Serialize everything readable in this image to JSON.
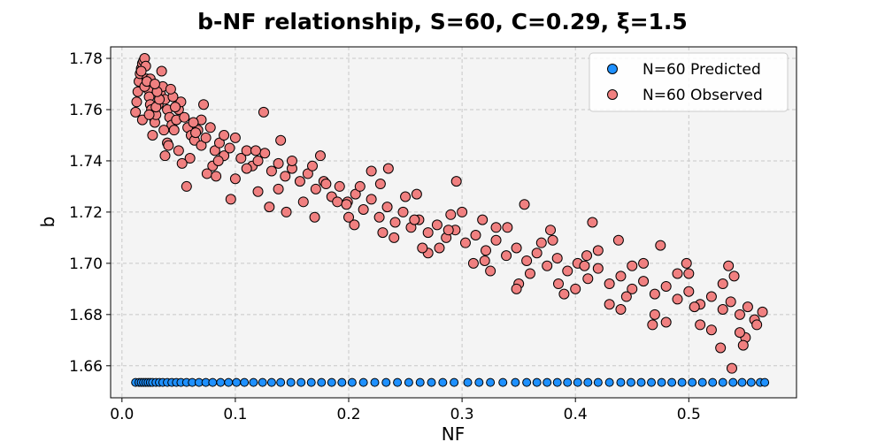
{
  "chart_data": {
    "type": "scatter",
    "title": "b-NF relationship, S=60, C=0.29, ξ=1.5",
    "xlabel": "NF",
    "ylabel": "b",
    "xlim": [
      -0.01,
      0.595
    ],
    "ylim": [
      1.6475,
      1.7845
    ],
    "x_ticks": [
      0.0,
      0.1,
      0.2,
      0.3,
      0.4,
      0.5
    ],
    "x_tick_labels": [
      "0.0",
      "0.1",
      "0.2",
      "0.3",
      "0.4",
      "0.5"
    ],
    "y_ticks": [
      1.66,
      1.68,
      1.7,
      1.72,
      1.74,
      1.76,
      1.78
    ],
    "y_tick_labels": [
      "1.66",
      "1.68",
      "1.70",
      "1.72",
      "1.74",
      "1.76",
      "1.78"
    ],
    "grid": true,
    "legend_position": "top-right",
    "series": [
      {
        "name": "N=60 Predicted",
        "color": "#1e90ff",
        "x": [
          0.012,
          0.015,
          0.017,
          0.019,
          0.021,
          0.023,
          0.025,
          0.027,
          0.03,
          0.033,
          0.036,
          0.04,
          0.044,
          0.048,
          0.052,
          0.057,
          0.062,
          0.068,
          0.074,
          0.08,
          0.087,
          0.094,
          0.101,
          0.108,
          0.116,
          0.124,
          0.132,
          0.14,
          0.149,
          0.158,
          0.167,
          0.176,
          0.185,
          0.194,
          0.203,
          0.213,
          0.223,
          0.233,
          0.243,
          0.253,
          0.263,
          0.273,
          0.283,
          0.293,
          0.305,
          0.315,
          0.325,
          0.336,
          0.347,
          0.357,
          0.366,
          0.375,
          0.384,
          0.393,
          0.402,
          0.411,
          0.42,
          0.43,
          0.44,
          0.449,
          0.458,
          0.467,
          0.476,
          0.485,
          0.494,
          0.503,
          0.512,
          0.521,
          0.53,
          0.539,
          0.547,
          0.555,
          0.563,
          0.567
        ],
        "y": [
          1.6535,
          1.6535,
          1.6535,
          1.6535,
          1.6535,
          1.6535,
          1.6535,
          1.6535,
          1.6535,
          1.6535,
          1.6535,
          1.6535,
          1.6535,
          1.6535,
          1.6535,
          1.6535,
          1.6535,
          1.6535,
          1.6535,
          1.6535,
          1.6535,
          1.6535,
          1.6535,
          1.6535,
          1.6535,
          1.6535,
          1.6535,
          1.6535,
          1.6535,
          1.6535,
          1.6535,
          1.6535,
          1.6535,
          1.6535,
          1.6535,
          1.6535,
          1.6535,
          1.6535,
          1.6535,
          1.6535,
          1.6535,
          1.6535,
          1.6535,
          1.6535,
          1.6535,
          1.6535,
          1.6535,
          1.6535,
          1.6535,
          1.6535,
          1.6535,
          1.6535,
          1.6535,
          1.6535,
          1.6535,
          1.6535,
          1.6535,
          1.6535,
          1.6535,
          1.6535,
          1.6535,
          1.6535,
          1.6535,
          1.6535,
          1.6535,
          1.6535,
          1.6535,
          1.6535,
          1.6535,
          1.6535,
          1.6535,
          1.6535,
          1.6535,
          1.6535
        ]
      },
      {
        "name": "N=60 Observed",
        "color": "#f08080",
        "x": [
          0.012,
          0.013,
          0.014,
          0.015,
          0.016,
          0.017,
          0.018,
          0.019,
          0.02,
          0.021,
          0.022,
          0.023,
          0.024,
          0.025,
          0.026,
          0.027,
          0.028,
          0.029,
          0.03,
          0.032,
          0.034,
          0.036,
          0.038,
          0.04,
          0.042,
          0.044,
          0.046,
          0.048,
          0.05,
          0.052,
          0.055,
          0.058,
          0.061,
          0.064,
          0.067,
          0.07,
          0.074,
          0.078,
          0.082,
          0.086,
          0.09,
          0.095,
          0.1,
          0.105,
          0.11,
          0.115,
          0.12,
          0.126,
          0.132,
          0.138,
          0.144,
          0.15,
          0.157,
          0.164,
          0.171,
          0.178,
          0.185,
          0.192,
          0.199,
          0.206,
          0.213,
          0.22,
          0.227,
          0.234,
          0.241,
          0.248,
          0.255,
          0.262,
          0.27,
          0.278,
          0.286,
          0.294,
          0.303,
          0.312,
          0.321,
          0.33,
          0.339,
          0.348,
          0.357,
          0.366,
          0.375,
          0.384,
          0.393,
          0.402,
          0.411,
          0.42,
          0.43,
          0.44,
          0.45,
          0.46,
          0.47,
          0.48,
          0.49,
          0.5,
          0.51,
          0.52,
          0.53,
          0.537,
          0.545,
          0.552,
          0.558,
          0.565,
          0.02,
          0.025,
          0.03,
          0.035,
          0.04,
          0.045,
          0.05,
          0.06,
          0.07,
          0.08,
          0.1,
          0.12,
          0.14,
          0.16,
          0.18,
          0.2,
          0.22,
          0.24,
          0.26,
          0.28,
          0.3,
          0.32,
          0.34,
          0.36,
          0.38,
          0.4,
          0.42,
          0.44,
          0.46,
          0.48,
          0.5,
          0.52,
          0.54,
          0.55,
          0.018,
          0.022,
          0.027,
          0.033,
          0.038,
          0.043,
          0.053,
          0.065,
          0.075,
          0.09,
          0.11,
          0.13,
          0.15,
          0.17,
          0.19,
          0.21,
          0.23,
          0.25,
          0.27,
          0.29,
          0.31,
          0.33,
          0.35,
          0.37,
          0.39,
          0.41,
          0.43,
          0.45,
          0.47,
          0.49,
          0.51,
          0.53,
          0.545,
          0.56,
          0.017,
          0.024,
          0.031,
          0.037,
          0.047,
          0.057,
          0.072,
          0.085,
          0.096,
          0.125,
          0.145,
          0.175,
          0.205,
          0.235,
          0.265,
          0.295,
          0.325,
          0.355,
          0.385,
          0.415,
          0.445,
          0.475,
          0.505,
          0.535,
          0.548,
          0.029,
          0.041,
          0.063,
          0.083,
          0.118,
          0.138,
          0.168,
          0.198,
          0.228,
          0.258,
          0.288,
          0.318,
          0.348,
          0.378,
          0.408,
          0.438,
          0.468,
          0.498,
          0.528,
          0.538
        ],
        "y": [
          1.759,
          1.763,
          1.767,
          1.771,
          1.774,
          1.776,
          1.778,
          1.779,
          1.78,
          1.777,
          1.772,
          1.768,
          1.765,
          1.762,
          1.76,
          1.758,
          1.757,
          1.755,
          1.758,
          1.762,
          1.766,
          1.769,
          1.764,
          1.76,
          1.757,
          1.754,
          1.752,
          1.756,
          1.76,
          1.763,
          1.757,
          1.753,
          1.75,
          1.748,
          1.752,
          1.746,
          1.749,
          1.753,
          1.744,
          1.747,
          1.742,
          1.745,
          1.749,
          1.741,
          1.744,
          1.738,
          1.74,
          1.743,
          1.736,
          1.739,
          1.734,
          1.737,
          1.732,
          1.735,
          1.729,
          1.732,
          1.726,
          1.73,
          1.724,
          1.727,
          1.721,
          1.725,
          1.718,
          1.722,
          1.716,
          1.72,
          1.714,
          1.717,
          1.712,
          1.715,
          1.71,
          1.713,
          1.708,
          1.711,
          1.705,
          1.709,
          1.703,
          1.706,
          1.701,
          1.704,
          1.699,
          1.702,
          1.697,
          1.7,
          1.694,
          1.698,
          1.692,
          1.695,
          1.69,
          1.693,
          1.688,
          1.691,
          1.686,
          1.689,
          1.684,
          1.687,
          1.682,
          1.685,
          1.68,
          1.683,
          1.678,
          1.681,
          1.769,
          1.772,
          1.761,
          1.775,
          1.747,
          1.765,
          1.744,
          1.741,
          1.756,
          1.738,
          1.733,
          1.728,
          1.748,
          1.724,
          1.731,
          1.718,
          1.736,
          1.71,
          1.727,
          1.706,
          1.72,
          1.701,
          1.714,
          1.696,
          1.709,
          1.69,
          1.705,
          1.682,
          1.7,
          1.677,
          1.696,
          1.674,
          1.695,
          1.671,
          1.756,
          1.771,
          1.75,
          1.764,
          1.742,
          1.768,
          1.739,
          1.751,
          1.735,
          1.75,
          1.737,
          1.722,
          1.74,
          1.718,
          1.724,
          1.73,
          1.712,
          1.726,
          1.704,
          1.719,
          1.7,
          1.714,
          1.692,
          1.708,
          1.688,
          1.703,
          1.684,
          1.699,
          1.68,
          1.696,
          1.676,
          1.692,
          1.673,
          1.676,
          1.775,
          1.758,
          1.767,
          1.752,
          1.761,
          1.73,
          1.762,
          1.74,
          1.725,
          1.759,
          1.72,
          1.742,
          1.715,
          1.737,
          1.706,
          1.732,
          1.697,
          1.723,
          1.692,
          1.716,
          1.687,
          1.707,
          1.683,
          1.699,
          1.668,
          1.77,
          1.746,
          1.755,
          1.734,
          1.744,
          1.729,
          1.738,
          1.723,
          1.731,
          1.717,
          1.713,
          1.717,
          1.69,
          1.713,
          1.699,
          1.709,
          1.676,
          1.7,
          1.667,
          1.659
        ]
      }
    ]
  }
}
